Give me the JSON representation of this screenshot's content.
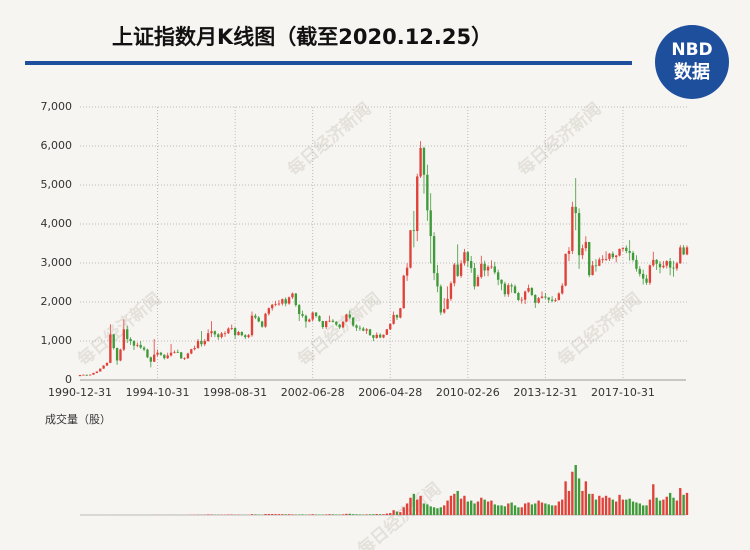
{
  "chart_data": {
    "type": "candlestick",
    "title": "上证指数月K线图（截至2020.12.25）",
    "volume_label": "成交量（股）",
    "logo": {
      "brand": "NBD",
      "label": "数据"
    },
    "watermark": "每日经济新闻",
    "up_color": "#e0423a",
    "down_color": "#3f9a3a",
    "grid": true,
    "ylim": [
      0,
      7000
    ],
    "yticks": [
      0,
      {
        "value": 1000,
        "label": "1,000"
      },
      {
        "value": 2000,
        "label": "2,000"
      },
      {
        "value": 3000,
        "label": "3,000"
      },
      {
        "value": 4000,
        "label": "4,000"
      },
      {
        "value": 5000,
        "label": "5,000"
      },
      {
        "value": 6000,
        "label": "6,000"
      },
      {
        "value": 7000,
        "label": "7,000"
      }
    ],
    "categories": [
      "1990-12-31",
      null,
      null,
      null,
      null,
      null,
      null,
      null,
      null,
      null,
      null,
      null,
      null,
      null,
      null,
      null,
      null,
      null,
      null,
      null,
      null,
      null,
      null,
      "1994-10-31",
      null,
      null,
      null,
      null,
      null,
      null,
      null,
      null,
      null,
      null,
      null,
      null,
      null,
      null,
      null,
      null,
      null,
      null,
      null,
      null,
      null,
      null,
      "1998-08-31",
      null,
      null,
      null,
      null,
      null,
      null,
      null,
      null,
      null,
      null,
      null,
      null,
      null,
      null,
      null,
      null,
      null,
      null,
      null,
      null,
      null,
      null,
      "2002-06-28",
      null,
      null,
      null,
      null,
      null,
      null,
      null,
      null,
      null,
      null,
      null,
      null,
      null,
      null,
      null,
      null,
      null,
      null,
      null,
      null,
      null,
      null,
      "2006-04-28",
      null,
      null,
      null,
      null,
      null,
      null,
      null,
      null,
      null,
      null,
      null,
      null,
      null,
      null,
      null,
      null,
      null,
      null,
      null,
      null,
      null,
      null,
      "2010-02-26",
      null,
      null,
      null,
      null,
      null,
      null,
      null,
      null,
      null,
      null,
      null,
      null,
      null,
      null,
      null,
      null,
      null,
      null,
      null,
      null,
      null,
      null,
      "2013-12-31",
      null,
      null,
      null,
      null,
      null,
      null,
      null,
      null,
      null,
      null,
      null,
      null,
      null,
      null,
      null,
      null,
      null,
      null,
      null,
      null,
      null,
      null,
      "2017-10-31",
      null,
      null,
      null,
      null,
      null,
      null,
      null,
      null,
      null,
      null,
      null,
      null,
      null,
      null,
      null,
      null,
      null,
      null,
      null
    ],
    "open": [
      100,
      128,
      134,
      120,
      137,
      180,
      218,
      292,
      370,
      440,
      1170,
      820,
      500,
      780,
      1300,
      1050,
      1000,
      880,
      900,
      830,
      780,
      580,
      470,
      650,
      700,
      647,
      560,
      630,
      700,
      720,
      710,
      555,
      560,
      680,
      790,
      820,
      1000,
      917,
      1000,
      1200,
      1250,
      1170,
      1100,
      1194,
      1200,
      1320,
      1330,
      1150,
      1230,
      1147,
      1100,
      1150,
      1650,
      1600,
      1500,
      1367,
      1700,
      1840,
      1930,
      1950,
      1960,
      2073,
      1960,
      2120,
      2218,
      1920,
      1690,
      1646,
      1500,
      1550,
      1730,
      1640,
      1510,
      1357,
      1510,
      1520,
      1490,
      1420,
      1350,
      1497,
      1680,
      1600,
      1400,
      1340,
      1320,
      1266,
      1300,
      1150,
      1080,
      1160,
      1090,
      1161,
      1300,
      1440,
      1670,
      1600,
      1840,
      2675,
      2880,
      3840,
      3820,
      5220,
      5950,
      5262,
      4350,
      3690,
      2740,
      2400,
      1730,
      1821,
      2080,
      2480,
      2960,
      2670,
      2990,
      3277,
      3050,
      2870,
      2400,
      2640,
      2980,
      2808,
      2900,
      2910,
      2760,
      2570,
      2470,
      2199,
      2430,
      2400,
      2230,
      2050,
      2060,
      2269,
      2360,
      2180,
      1980,
      2100,
      2140,
      2116,
      2060,
      2030,
      2050,
      2220,
      2420,
      3235,
      3310,
      4440,
      4280,
      3200,
      3380,
      3539,
      2690,
      2940,
      2930,
      3090,
      3100,
      3104,
      3240,
      3150,
      3190,
      3360,
      3390,
      3307,
      3260,
      3080,
      2850,
      2720,
      2600,
      2494,
      2940,
      3080,
      2980,
      2890,
      2930,
      3050,
      2880,
      2860,
      2990,
      3400,
      3220
    ],
    "high": [
      130,
      140,
      136,
      140,
      185,
      222,
      295,
      380,
      450,
      1429,
      1180,
      830,
      800,
      1558,
      1390,
      1100,
      1020,
      960,
      1000,
      870,
      800,
      600,
      1052,
      780,
      720,
      660,
      700,
      926,
      760,
      780,
      720,
      580,
      700,
      800,
      880,
      1050,
      1258,
      1050,
      1300,
      1510,
      1270,
      1200,
      1230,
      1250,
      1350,
      1422,
      1350,
      1260,
      1250,
      1180,
      1180,
      1756,
      1700,
      1640,
      1520,
      1720,
      1860,
      1950,
      2030,
      2050,
      2090,
      2120,
      2140,
      2245,
      2230,
      1950,
      1780,
      1680,
      1580,
      1748,
      1740,
      1660,
      1520,
      1520,
      1650,
      1560,
      1510,
      1440,
      1500,
      1700,
      1783,
      1610,
      1430,
      1400,
      1360,
      1330,
      1310,
      1160,
      1220,
      1200,
      1170,
      1310,
      1450,
      1757,
      1680,
      1850,
      2698,
      2990,
      3850,
      4335,
      5290,
      6124,
      5980,
      5522,
      4790,
      3790,
      2950,
      2450,
      2100,
      2400,
      2530,
      3000,
      3478,
      3070,
      3361,
      3306,
      3180,
      3000,
      2700,
      3186,
      3060,
      2950,
      3067,
      3030,
      2830,
      2580,
      2520,
      2480,
      2478,
      2450,
      2260,
      2130,
      2290,
      2444,
      2380,
      2200,
      2130,
      2270,
      2230,
      2120,
      2150,
      2100,
      2250,
      2480,
      3239,
      3406,
      4572,
      5178,
      4400,
      3470,
      3684,
      3538,
      3050,
      3100,
      3140,
      3200,
      3301,
      3260,
      3295,
      3210,
      3372,
      3400,
      3450,
      3587,
      3310,
      3200,
      2920,
      2830,
      2700,
      2960,
      3288,
      3100,
      3048,
      3050,
      3070,
      3127,
      3058,
      3030,
      3458,
      3460,
      3450
    ],
    "low": [
      95,
      115,
      105,
      112,
      135,
      175,
      215,
      285,
      360,
      430,
      780,
      390,
      480,
      740,
      950,
      900,
      770,
      840,
      800,
      740,
      560,
      325,
      460,
      600,
      620,
      524,
      540,
      600,
      680,
      690,
      540,
      512,
      540,
      660,
      760,
      800,
      855,
      870,
      980,
      1100,
      1100,
      1030,
      1060,
      1110,
      1180,
      1280,
      1050,
      1140,
      1120,
      1050,
      1070,
      1110,
      1560,
      1480,
      1340,
      1340,
      1650,
      1780,
      1890,
      1900,
      1910,
      1890,
      1930,
      2080,
      1880,
      1514,
      1600,
      1339,
      1480,
      1500,
      1600,
      1490,
      1310,
      1310,
      1480,
      1470,
      1380,
      1307,
      1330,
      1480,
      1560,
      1360,
      1260,
      1260,
      1250,
      1180,
      1130,
      998,
      1060,
      1070,
      1070,
      1150,
      1280,
      1420,
      1540,
      1580,
      1830,
      2540,
      2860,
      3400,
      3560,
      5180,
      4780,
      4080,
      2990,
      2560,
      2250,
      1664,
      1700,
      1810,
      2030,
      2400,
      2640,
      2620,
      2930,
      2890,
      2750,
      2319,
      2470,
      2600,
      2660,
      2661,
      2850,
      2710,
      2430,
      2300,
      2134,
      2132,
      2240,
      2210,
      2030,
      1960,
      1949,
      2240,
      2150,
      1849,
      1960,
      2090,
      2080,
      1974,
      1990,
      2000,
      2040,
      2190,
      2400,
      3050,
      3230,
      3840,
      2850,
      3100,
      3300,
      2638,
      2680,
      2780,
      2920,
      3000,
      3050,
      3050,
      3100,
      3016,
      3170,
      3300,
      3250,
      3062,
      3040,
      2780,
      2653,
      2449,
      2440,
      2440,
      2900,
      2820,
      2733,
      2860,
      2860,
      2685,
      2646,
      2800,
      2980,
      3202,
      3200
    ],
    "close": [
      128,
      134,
      120,
      137,
      180,
      218,
      292,
      370,
      440,
      1170,
      820,
      500,
      780,
      1300,
      1050,
      1000,
      880,
      900,
      830,
      780,
      580,
      470,
      650,
      700,
      647,
      560,
      630,
      700,
      720,
      710,
      555,
      560,
      680,
      790,
      820,
      1000,
      917,
      1000,
      1200,
      1250,
      1170,
      1100,
      1194,
      1200,
      1320,
      1330,
      1150,
      1230,
      1147,
      1100,
      1150,
      1650,
      1600,
      1500,
      1367,
      1700,
      1840,
      1930,
      1950,
      1960,
      2073,
      1960,
      2120,
      2218,
      1920,
      1690,
      1646,
      1500,
      1550,
      1730,
      1640,
      1510,
      1357,
      1510,
      1520,
      1490,
      1420,
      1350,
      1497,
      1680,
      1600,
      1400,
      1340,
      1320,
      1266,
      1300,
      1150,
      1080,
      1160,
      1090,
      1161,
      1300,
      1440,
      1670,
      1600,
      1840,
      2675,
      2880,
      3840,
      3820,
      5220,
      5950,
      5262,
      4350,
      3690,
      2740,
      2400,
      1730,
      1821,
      2080,
      2480,
      2960,
      2670,
      2990,
      3277,
      3050,
      2870,
      2400,
      2640,
      2980,
      2808,
      2900,
      2910,
      2760,
      2570,
      2470,
      2199,
      2430,
      2400,
      2230,
      2050,
      2060,
      2269,
      2360,
      2180,
      1980,
      2100,
      2140,
      2116,
      2060,
      2030,
      2050,
      2220,
      2420,
      3235,
      3310,
      4440,
      4280,
      3200,
      3380,
      3539,
      2690,
      2940,
      2930,
      3090,
      3100,
      3104,
      3240,
      3150,
      3190,
      3360,
      3390,
      3307,
      3260,
      3080,
      2850,
      2720,
      2600,
      2494,
      2940,
      3080,
      2980,
      2890,
      2930,
      3050,
      2880,
      2860,
      2990,
      3400,
      3220,
      3400
    ],
    "volume": [
      1000000.0,
      5000000.0,
      5000000.0,
      6000000.0,
      8000000.0,
      10000000.0,
      20000000.0,
      40000000.0,
      50000000.0,
      200000000.0,
      200000000.0,
      100000000.0,
      200000000.0,
      500000000.0,
      400000000.0,
      300000000.0,
      200000000.0,
      200000000.0,
      300000000.0,
      300000000.0,
      300000000.0,
      200000000.0,
      1500000000.0,
      800000000.0,
      500000000.0,
      400000000.0,
      900000000.0,
      1000000000.0,
      600000000.0,
      500000000.0,
      400000000.0,
      500000000.0,
      1500000000.0,
      2000000000.0,
      1800000000.0,
      3000000000.0,
      2500000000.0,
      3000000000.0,
      6000000000.0,
      5000000000.0,
      3000000000.0,
      3000000000.0,
      3000000000.0,
      3000000000.0,
      5000000000.0,
      5000000000.0,
      3000000000.0,
      3000000000.0,
      2500000000.0,
      2000000000.0,
      2000000000.0,
      8000000000.0,
      6000000000.0,
      4000000000.0,
      3000000000.0,
      10000000000.0,
      10000000000.0,
      10000000000.0,
      9000000000.0,
      9000000000.0,
      8000000000.0,
      7000000000.0,
      8000000000.0,
      6000000000.0,
      5000000000.0,
      5000000000.0,
      6000000000.0,
      4000000000.0,
      5000000000.0,
      8000000000.0,
      5000000000.0,
      4000000000.0,
      4000000000.0,
      6000000000.0,
      8000000000.0,
      7000000000.0,
      5000000000.0,
      5000000000.0,
      7000000000.0,
      12000000000.0,
      13000000000.0,
      8000000000.0,
      7000000000.0,
      6000000000.0,
      5000000000.0,
      6000000000.0,
      7000000000.0,
      8000000000.0,
      10000000000.0,
      8000000000.0,
      8000000000.0,
      15000000000.0,
      20000000000.0,
      50000000000.0,
      35000000000.0,
      30000000000.0,
      80000000000.0,
      120000000000.0,
      180000000000.0,
      220000000000.0,
      160000000000.0,
      200000000000.0,
      120000000000.0,
      110000000000.0,
      90000000000.0,
      80000000000.0,
      70000000000.0,
      80000000000.0,
      100000000000.0,
      150000000000.0,
      200000000000.0,
      220000000000.0,
      250000000000.0,
      170000000000.0,
      200000000000.0,
      140000000000.0,
      150000000000.0,
      120000000000.0,
      140000000000.0,
      180000000000.0,
      160000000000.0,
      140000000000.0,
      150000000000.0,
      110000000000.0,
      100000000000.0,
      100000000000.0,
      90000000000.0,
      120000000000.0,
      130000000000.0,
      100000000000.0,
      80000000000.0,
      80000000000.0,
      120000000000.0,
      130000000000.0,
      110000000000.0,
      120000000000.0,
      150000000000.0,
      130000000000.0,
      120000000000.0,
      110000000000.0,
      100000000000.0,
      100000000000.0,
      140000000000.0,
      160000000000.0,
      350000000000.0,
      250000000000.0,
      450000000000.0,
      520000000000.0,
      380000000000.0,
      250000000000.0,
      350000000000.0,
      220000000000.0,
      220000000000.0,
      160000000000.0,
      200000000000.0,
      180000000000.0,
      200000000000.0,
      180000000000.0,
      160000000000.0,
      140000000000.0,
      210000000000.0,
      160000000000.0,
      160000000000.0,
      170000000000.0,
      140000000000.0,
      130000000000.0,
      120000000000.0,
      100000000000.0,
      100000000000.0,
      160000000000.0,
      320000000000.0,
      180000000000.0,
      150000000000.0,
      160000000000.0,
      190000000000.0,
      230000000000.0,
      180000000000.0,
      150000000000.0,
      280000000000.0,
      210000000000.0,
      230000000000.0
    ]
  }
}
